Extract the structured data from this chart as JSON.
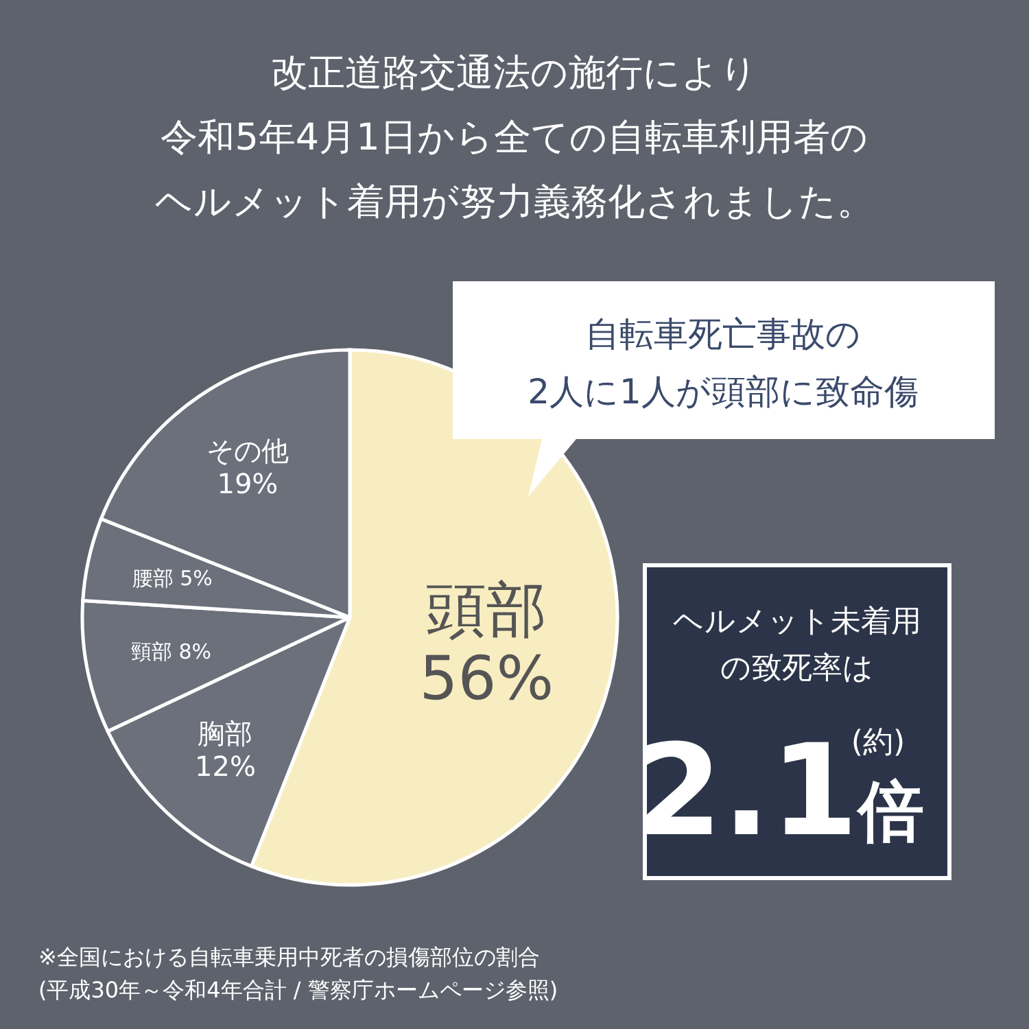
{
  "chart_data": {
    "type": "pie",
    "title": "改正道路交通法の施行により",
    "subtitle": "令和5年4月1日から全ての自転車利用者のヘルメット着用が努力義務化されました。",
    "categories": [
      "頭部",
      "胸部",
      "頸部",
      "腰部",
      "その他"
    ],
    "values": [
      56,
      12,
      8,
      5,
      19
    ],
    "value_labels": [
      "56%",
      "12%",
      "8%",
      "5%",
      "19%"
    ],
    "colors": [
      "#f7edc0",
      "#6b707b",
      "#6b707b",
      "#6b707b",
      "#6b707b"
    ],
    "legend": false,
    "annotations": [
      "自転車死亡事故の\n2人に1人が頭部に致命傷",
      "ヘルメット未着用の致死率は",
      "(約)",
      "2.1倍",
      "※全国における自転車乗用中死者の損傷部位の割合\n(平成30年～令和4年合計 / 警察庁ホームページ参照)"
    ]
  }
}
